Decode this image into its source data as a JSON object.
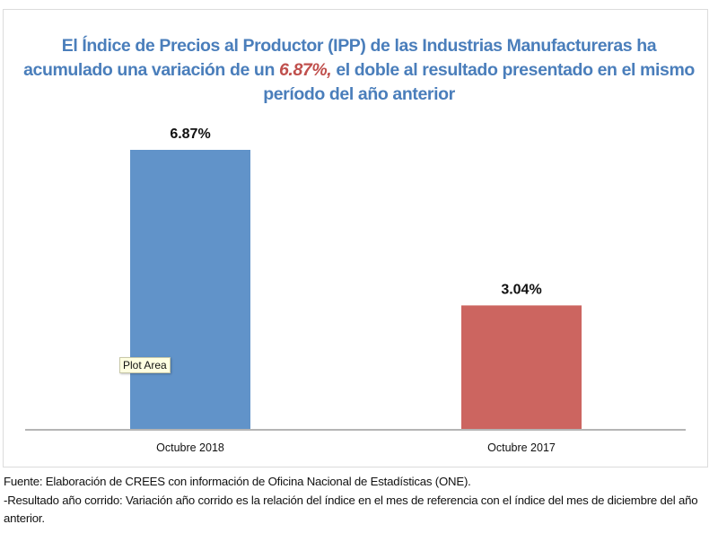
{
  "title": {
    "part1": "El Índice de Precios al Productor (IPP) de las Industrias Manufactureras ha acumulado una variación de un ",
    "highlight": "6.87%,",
    "part2": " el doble al resultado presentado en el mismo período del año anterior"
  },
  "tooltip": "Plot Area",
  "footnotes": {
    "source": "Fuente: Elaboración de CREES con información de Oficina Nacional de Estadísticas (ONE).",
    "note": "-Resultado año corrido: Variación año corrido es la relación del índice en el mes de referencia con el índice del mes de diciembre del año anterior."
  },
  "chart_data": {
    "type": "bar",
    "title": "El Índice de Precios al Productor (IPP) de las Industrias Manufactureras ha acumulado una variación de un 6.87%, el doble al resultado presentado en el mismo período del año anterior",
    "categories": [
      "Octubre 2018",
      "Octubre 2017"
    ],
    "values": [
      6.87,
      3.04
    ],
    "data_labels": [
      "6.87%",
      "3.04%"
    ],
    "colors": [
      "#6193c9",
      "#cc6560"
    ],
    "xlabel": "",
    "ylabel": "",
    "ylim": [
      0,
      6.87
    ],
    "grid": false,
    "legend": "none"
  }
}
